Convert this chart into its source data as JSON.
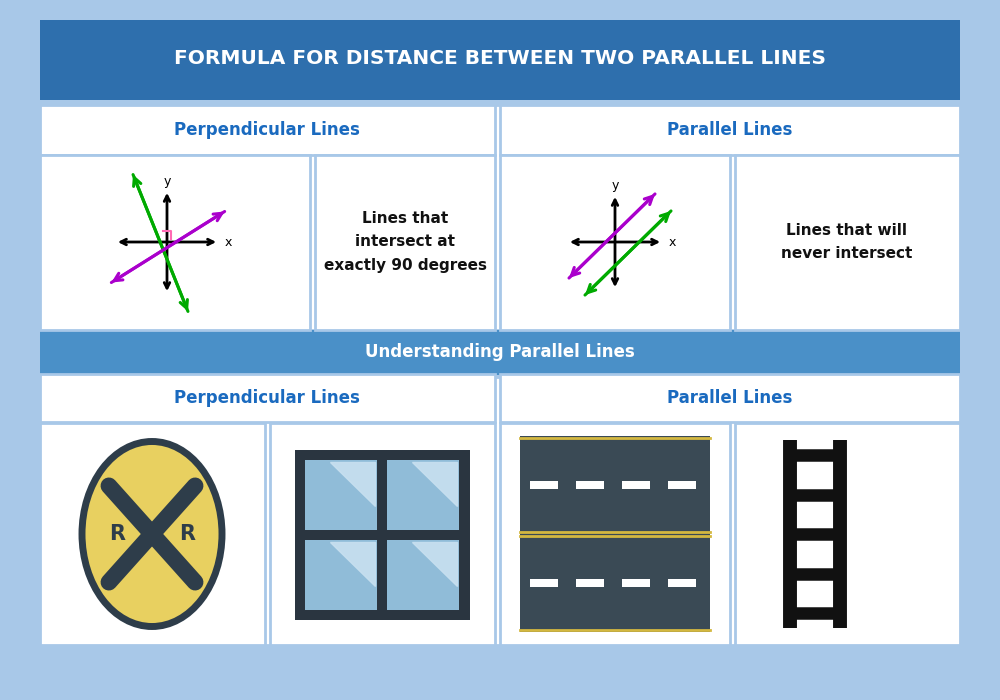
{
  "bg_color": "#a8c8e8",
  "title_bg": "#2e6fad",
  "title_text": "FORMULA FOR DISTANCE BETWEEN TWO PARALLEL LINES",
  "title_text_color": "#ffffff",
  "section_bg": "#4a90c8",
  "section2_text": "Understanding Parallel Lines",
  "perp_label": "Perpendicular Lines",
  "para_label": "Parallel Lines",
  "perp_desc": "Lines that\nintersect at\nexactly 90 degrees",
  "para_desc": "Lines that will\nnever intersect",
  "label_color": "#1a6abf",
  "desc_color": "#111111",
  "purple": "#aa00cc",
  "green": "#00aa00",
  "axis_color": "#111111",
  "road_dark": "#3a4a55",
  "road_yellow": "#d4b840",
  "road_white": "#ffffff",
  "ladder_color": "#111111",
  "window_frame": "#2a3540",
  "window_glass": "#90bcd8",
  "window_glare": "#c8e0f0",
  "sign_yellow": "#e8d060",
  "sign_dark": "#2e3d4a"
}
